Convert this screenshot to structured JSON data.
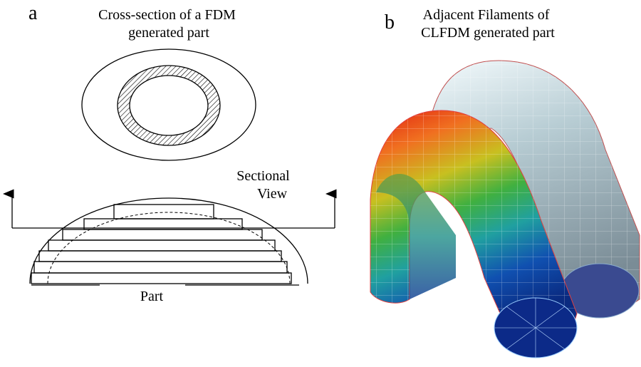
{
  "panel_a": {
    "label": "a",
    "title_lines": [
      "Cross-section of a FDM",
      "generated part"
    ],
    "section_lines": [
      "Sectional",
      "View"
    ],
    "part": "Part"
  },
  "panel_b": {
    "label": "b",
    "title_lines": [
      "Adjacent Filaments of",
      "CLFDM generated part"
    ]
  }
}
